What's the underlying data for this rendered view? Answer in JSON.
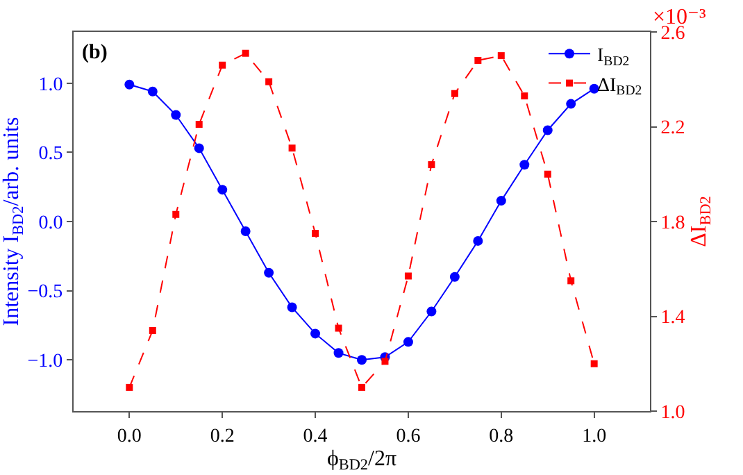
{
  "chart_data": {
    "type": "line",
    "xlabel": "ϕ$_{BD2}$/2π",
    "ylabel": "Intensity I$_{BD2}$/arb. units",
    "y2label": "ΔI$_{BD2}$",
    "annotations": [
      "(b)",
      "×10⁻³"
    ],
    "x": [
      0,
      0.05,
      0.1,
      0.15,
      0.2,
      0.25,
      0.3,
      0.35,
      0.4,
      0.45,
      0.5,
      0.55,
      0.6,
      0.65,
      0.7,
      0.75,
      0.8,
      0.85,
      0.9,
      0.95,
      1.0
    ],
    "series": [
      {
        "name": "I$_{BD2}$",
        "color": "#0000ff",
        "marker": "circle",
        "line_style": "solid",
        "values": [
          0.99,
          0.94,
          0.77,
          0.53,
          0.23,
          -0.07,
          -0.37,
          -0.62,
          -0.81,
          -0.95,
          -1.0,
          -0.98,
          -0.87,
          -0.65,
          -0.4,
          -0.14,
          0.15,
          0.41,
          0.66,
          0.85,
          0.96
        ]
      },
      {
        "name": "ΔI$_{BD2}$",
        "color": "#ff0000",
        "marker": "square",
        "line_style": "dashed",
        "axis": "y2",
        "values": [
          1.1,
          1.34,
          1.83,
          2.21,
          2.46,
          2.51,
          2.39,
          2.11,
          1.75,
          1.35,
          1.1,
          1.21,
          1.57,
          2.04,
          2.34,
          2.48,
          2.5,
          2.33,
          2.0,
          1.55,
          1.2
        ]
      }
    ],
    "xlim": [
      -0.12,
      1.12
    ],
    "xticks": [
      {
        "value": 0,
        "label": "0.0"
      },
      0.2,
      0.4,
      0.6,
      0.8,
      {
        "value": 1,
        "label": "1.0"
      }
    ],
    "ylim": [
      -1.37,
      1.37
    ],
    "yticks": [
      {
        "value": -1,
        "label": "−1.0"
      },
      {
        "value": -0.5,
        "label": "−0.5"
      },
      {
        "value": 0,
        "label": "0.0"
      },
      0.5,
      {
        "value": 1,
        "label": "1.0"
      }
    ],
    "y2lim": [
      1.0,
      2.6
    ],
    "y2ticks": [
      {
        "value": 1,
        "label": "1.0"
      },
      1.4,
      1.8,
      2.2,
      2.6
    ],
    "grid": false,
    "legend": "top right"
  }
}
